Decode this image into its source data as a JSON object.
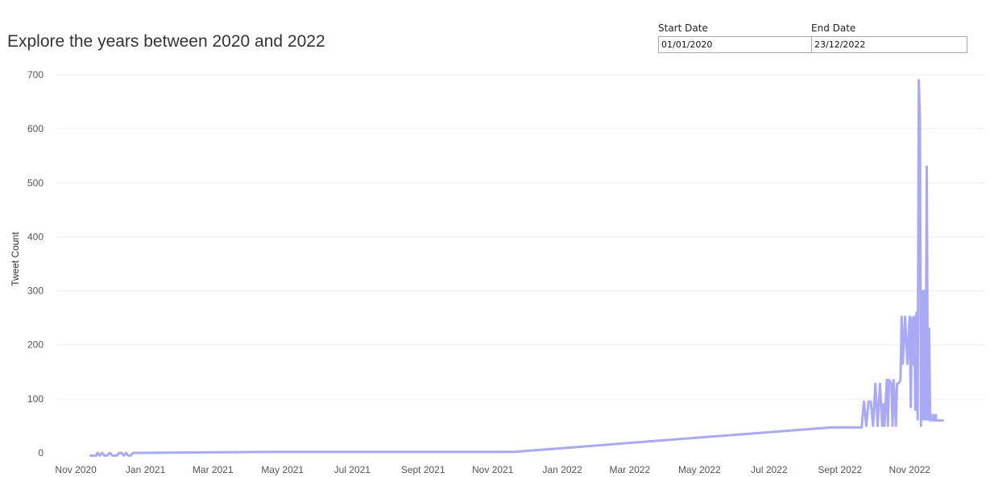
{
  "chart_data": {
    "type": "line",
    "title": "Explore the years between 2020 and 2022",
    "xlabel": "",
    "ylabel": "Tweet Count",
    "ylim": [
      0,
      700
    ],
    "yticks": [
      0,
      100,
      200,
      300,
      400,
      500,
      600,
      700
    ],
    "xlim": [
      "2020-10-15",
      "2022-12-31"
    ],
    "xticks": [
      {
        "date": "2020-11-01",
        "label": "Nov 2020"
      },
      {
        "date": "2021-01-01",
        "label": "Jan 2021"
      },
      {
        "date": "2021-03-01",
        "label": "Mar 2021"
      },
      {
        "date": "2021-05-01",
        "label": "May 2021"
      },
      {
        "date": "2021-07-01",
        "label": "Jul 2021"
      },
      {
        "date": "2021-09-01",
        "label": "Sept 2021"
      },
      {
        "date": "2021-11-01",
        "label": "Nov 2021"
      },
      {
        "date": "2022-01-01",
        "label": "Jan 2022"
      },
      {
        "date": "2022-03-01",
        "label": "Mar 2022"
      },
      {
        "date": "2022-05-01",
        "label": "May 2022"
      },
      {
        "date": "2022-07-01",
        "label": "Jul 2022"
      },
      {
        "date": "2022-09-01",
        "label": "Sept 2022"
      },
      {
        "date": "2022-11-01",
        "label": "Nov 2022"
      }
    ],
    "grid": true,
    "color": "#a9a9f5",
    "series": [
      {
        "x": [
          "2020-11-14",
          "2020-11-17",
          "2020-11-19",
          "2020-11-20",
          "2020-11-22",
          "2020-11-24",
          "2020-11-26",
          "2020-11-28",
          "2020-12-01",
          "2020-12-03",
          "2020-12-05",
          "2020-12-07",
          "2020-12-09",
          "2020-12-11",
          "2020-12-13",
          "2020-12-15",
          "2020-12-17",
          "2020-12-19",
          "2020-12-21",
          "2020-12-24",
          "2020-12-26",
          "2020-12-28",
          "2021-04-25",
          "2021-11-20",
          "2022-08-24",
          "2022-09-20",
          "2022-09-22",
          "2022-09-24",
          "2022-09-26",
          "2022-09-28",
          "2022-09-30",
          "2022-10-02",
          "2022-10-04",
          "2022-10-06",
          "2022-10-08",
          "2022-10-09",
          "2022-10-10",
          "2022-10-12",
          "2022-10-13",
          "2022-10-14",
          "2022-10-16",
          "2022-10-17",
          "2022-10-18",
          "2022-10-20",
          "2022-10-21",
          "2022-10-22",
          "2022-10-24",
          "2022-10-25",
          "2022-10-26",
          "2022-10-28",
          "2022-10-30",
          "2022-11-01",
          "2022-11-02",
          "2022-11-03",
          "2022-11-04",
          "2022-11-05",
          "2022-11-06",
          "2022-11-07",
          "2022-11-08",
          "2022-11-09",
          "2022-11-10",
          "2022-11-11",
          "2022-11-12",
          "2022-11-13",
          "2022-11-14",
          "2022-11-15",
          "2022-11-16",
          "2022-11-17",
          "2022-11-18",
          "2022-11-19",
          "2022-11-19",
          "2022-11-20",
          "2022-11-21",
          "2022-11-21",
          "2022-11-22",
          "2022-11-23",
          "2022-11-24",
          "2022-11-24",
          "2022-11-25",
          "2022-11-26",
          "2022-11-27",
          "2022-11-28",
          "2022-11-29",
          "2022-11-30"
        ],
        "y": [
          -5,
          -5,
          -5,
          0,
          -5,
          0,
          -5,
          -5,
          0,
          -5,
          -5,
          -5,
          0,
          0,
          -5,
          0,
          -5,
          -5,
          0,
          0,
          0,
          0,
          2,
          2,
          47,
          47,
          95,
          50,
          95,
          95,
          50,
          128,
          50,
          128,
          50,
          90,
          50,
          135,
          50,
          135,
          128,
          50,
          135,
          50,
          128,
          128,
          135,
          252,
          165,
          252,
          165,
          252,
          85,
          250,
          165,
          252,
          80,
          260,
          62,
          690,
          620,
          50,
          300,
          62,
          300,
          62,
          530,
          62,
          230,
          60,
          60,
          70,
          60,
          60,
          70,
          60,
          70,
          60,
          60,
          60,
          60,
          60,
          60,
          60
        ]
      }
    ]
  },
  "filters": {
    "start": {
      "label": "Start Date",
      "value": "01/01/2020"
    },
    "end": {
      "label": "End Date",
      "value": "23/12/2022"
    }
  }
}
